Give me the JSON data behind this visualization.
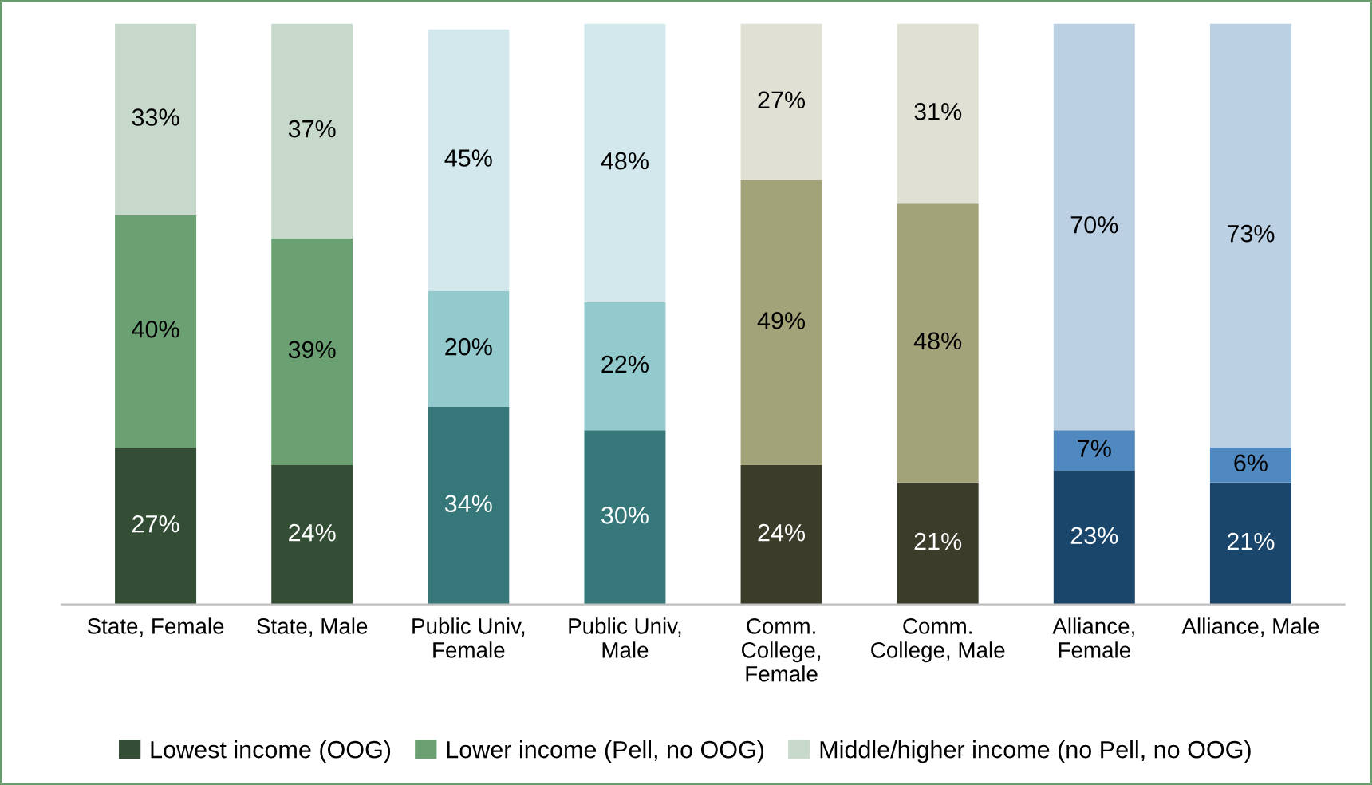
{
  "chart_data": {
    "type": "bar",
    "stacked": true,
    "legend": "bottom",
    "grid": false,
    "categories": [
      "State, Female",
      "State, Male",
      "Public Univ,\nFemale",
      "Public Univ,\nMale",
      "Comm.\nCollege,\nFemale",
      "Comm.\nCollege, Male",
      "Alliance,\nFemale",
      "Alliance, Male"
    ],
    "series": [
      {
        "name": "Lowest income (OOG)",
        "color": "#344e36",
        "colors": [
          "#344e36",
          "#344e36",
          "#36787a",
          "#36787a",
          "#3c3c2a",
          "#3c3c2a",
          "#1b466b",
          "#1b466b"
        ],
        "values": [
          27,
          24,
          34,
          30,
          24,
          21,
          23,
          21
        ],
        "value_labels": [
          "27%",
          "24%",
          "34%",
          "30%",
          "24%",
          "21%",
          "23%",
          "21%"
        ]
      },
      {
        "name": "Lower income (Pell, no OOG)",
        "color": "#6ba073",
        "colors": [
          "#6ba073",
          "#6ba073",
          "#93cacd",
          "#93cacd",
          "#a3a37a",
          "#a3a37a",
          "#4f89bf",
          "#4f89bf"
        ],
        "values": [
          40,
          39,
          20,
          22,
          49,
          48,
          7,
          6
        ],
        "value_labels": [
          "40%",
          "39%",
          "20%",
          "22%",
          "49%",
          "48%",
          "7%",
          "6%"
        ]
      },
      {
        "name": "Middle/higher income (no Pell, no OOG)",
        "color": "#c7d9cb",
        "colors": [
          "#c7d9cb",
          "#c7d9cb",
          "#d3e8ec",
          "#d3e8ec",
          "#e0e0d4",
          "#e0e0d4",
          "#bcd0e4",
          "#bcd0e4"
        ],
        "values": [
          33,
          37,
          45,
          48,
          27,
          31,
          70,
          73
        ],
        "value_labels": [
          "33%",
          "37%",
          "45%",
          "48%",
          "27%",
          "31%",
          "70%",
          "73%"
        ]
      }
    ]
  }
}
